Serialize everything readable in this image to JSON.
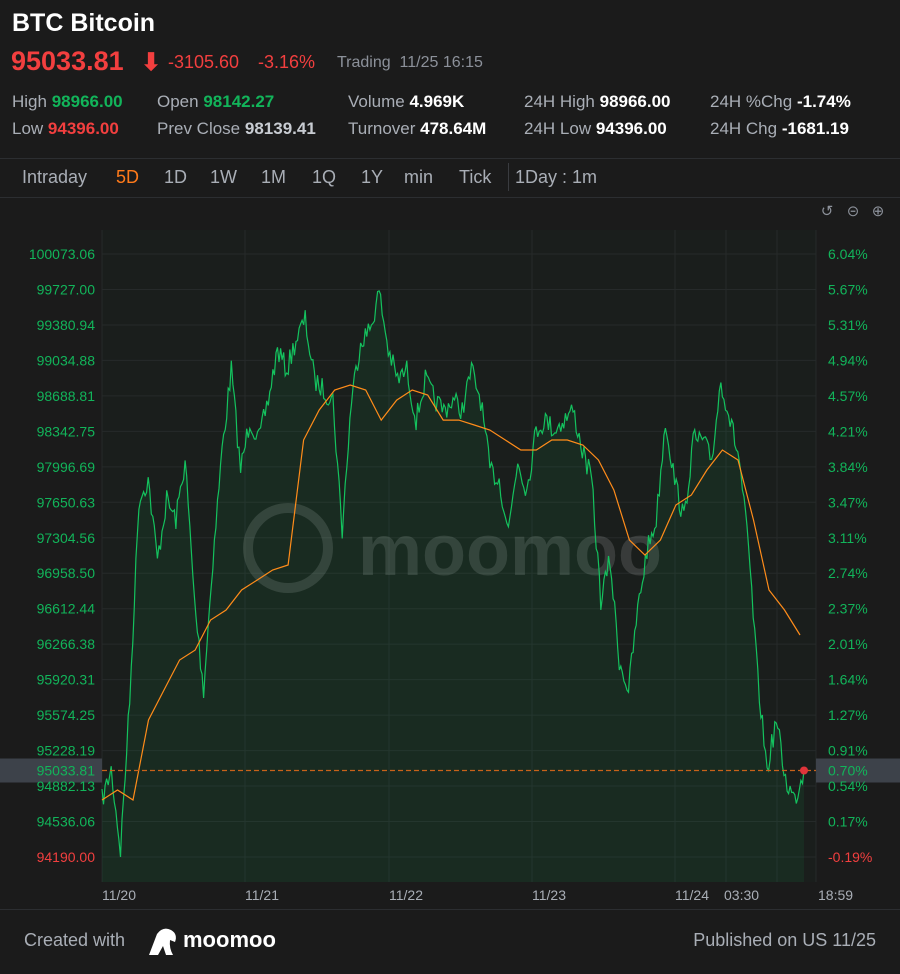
{
  "header": {
    "symbol": "BTC",
    "name": "Bitcoin",
    "price": "95033.81",
    "change": "-3105.60",
    "change_pct": "-3.16%",
    "status": "Trading",
    "timestamp": "11/25 16:15",
    "direction_icon": "arrow-down-icon"
  },
  "stats": {
    "high_label": "High",
    "high": "98966.00",
    "low_label": "Low",
    "low": "94396.00",
    "open_label": "Open",
    "open": "98142.27",
    "prev_close_label": "Prev Close",
    "prev_close": "98139.41",
    "volume_label": "Volume",
    "volume": "4.969K",
    "turnover_label": "Turnover",
    "turnover": "478.64M",
    "h24_high_label": "24H High",
    "h24_high": "98966.00",
    "h24_low_label": "24H Low",
    "h24_low": "94396.00",
    "h24_pct_label": "24H %Chg",
    "h24_pct": "-1.74%",
    "h24_chg_label": "24H Chg",
    "h24_chg": "-1681.19"
  },
  "tabs": [
    {
      "label": "Intraday"
    },
    {
      "label": "5D",
      "active": true
    },
    {
      "label": "1D"
    },
    {
      "label": "1W"
    },
    {
      "label": "1M"
    },
    {
      "label": "1Q"
    },
    {
      "label": "1Y"
    },
    {
      "label": "min"
    },
    {
      "label": "Tick"
    }
  ],
  "interval": "1Day : 1m",
  "colors": {
    "up": "#12b45a",
    "down": "#f23f3f",
    "avg": "#ff8c1a",
    "accent": "#ff7a1a"
  },
  "chart_data": {
    "type": "line",
    "y_ticks": [
      "100073.06",
      "99727.00",
      "99380.94",
      "99034.88",
      "98688.81",
      "98342.75",
      "97996.69",
      "97650.63",
      "97304.56",
      "96958.50",
      "96612.44",
      "96266.38",
      "95920.31",
      "95574.25",
      "95228.19",
      "94882.13",
      "94536.06",
      "94190.00"
    ],
    "pct_ticks": [
      "6.04%",
      "5.67%",
      "5.31%",
      "4.94%",
      "4.57%",
      "4.21%",
      "3.84%",
      "3.47%",
      "3.11%",
      "2.74%",
      "2.37%",
      "2.01%",
      "1.64%",
      "1.27%",
      "0.91%",
      "0.54%",
      "0.17%",
      "-0.19%"
    ],
    "x_ticks": [
      "11/20",
      "11/21",
      "11/22",
      "11/23",
      "11/24",
      "03:30",
      "18:59"
    ],
    "ylim": [
      94190.0,
      100073.06
    ],
    "current_price": "95033.81",
    "current_pct": "0.70%",
    "series": [
      {
        "name": "price",
        "values": [
          94746,
          95039,
          94258,
          95722,
          97673,
          97868,
          97088,
          97673,
          97478,
          98063,
          96697,
          95819,
          97088,
          98161,
          98941,
          97966,
          98453,
          98258,
          98648,
          99136,
          98941,
          99234,
          99429,
          98844,
          98746,
          98648,
          97380,
          98648,
          99234,
          99331,
          99702,
          99136,
          98844,
          98941,
          98453,
          98844,
          98648,
          98551,
          98648,
          98551,
          98941,
          98648,
          97966,
          97868,
          97380,
          98063,
          97770,
          98356,
          98453,
          98356,
          98453,
          98551,
          98161,
          97868,
          96697,
          97088,
          96112,
          95819,
          96600,
          97185,
          97478,
          98453,
          97868,
          97478,
          98258,
          98258,
          98063,
          98844,
          98453,
          98063,
          97185,
          95917,
          95039,
          95527,
          94941,
          94746,
          95034
        ]
      },
      {
        "name": "average",
        "values": [
          94746,
          94844,
          94746,
          95527,
          95819,
          96112,
          96209,
          96502,
          96600,
          96795,
          96892,
          96990,
          97039,
          98258,
          98551,
          98746,
          98795,
          98746,
          98453,
          98648,
          98746,
          98697,
          98453,
          98453,
          98405,
          98356,
          98258,
          98161,
          98161,
          98258,
          98258,
          98210,
          98063,
          97770,
          97283,
          97136,
          97283,
          97624,
          97722,
          97966,
          98161,
          98063,
          97478,
          96795,
          96600,
          96356
        ]
      }
    ]
  },
  "watermark": "moomoo",
  "footer": {
    "created_with": "Created with",
    "brand": "moomoo",
    "published": "Published on US 11/25"
  }
}
